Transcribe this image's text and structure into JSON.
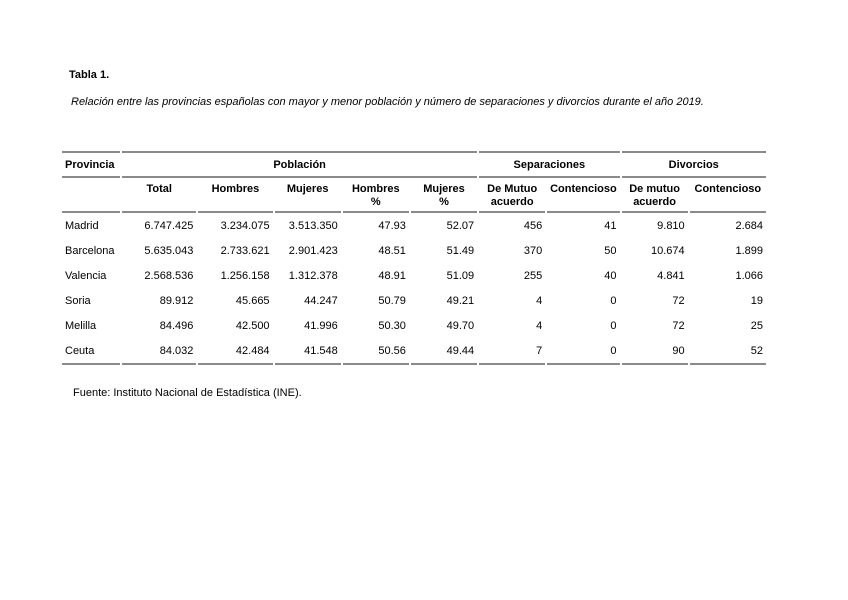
{
  "doc": {
    "title": "Tabla 1.",
    "subtitle": "Relación entre las provincias españolas con mayor y menor población y número de separaciones y divorcios durante el año 2019.",
    "source": "Fuente: Instituto Nacional de Estadística (INE)."
  },
  "colors": {
    "rule": "#8a8a8a",
    "text": "#000000",
    "background": "#ffffff"
  },
  "chart_data": {
    "type": "table",
    "title": "Tabla 1.",
    "caption": "Relación entre las provincias españolas con mayor y menor población y número de separaciones y divorcios durante el año 2019.",
    "source": "Fuente: Instituto Nacional de Estadística (INE).",
    "group_headers": [
      {
        "label": "Provincia",
        "colspan": 1
      },
      {
        "label": "Población",
        "colspan": 5
      },
      {
        "label": "Separaciones",
        "colspan": 2
      },
      {
        "label": "Divorcios",
        "colspan": 2
      }
    ],
    "column_headers": [
      "",
      "Total",
      "Hombres",
      "Mujeres",
      "Hombres\n%",
      "Mujeres\n%",
      "De Mutuo\nacuerdo",
      "Contencioso",
      "De mutuo\nacuerdo",
      "Contencioso"
    ],
    "rows": [
      [
        "Madrid",
        "6.747.425",
        "3.234.075",
        "3.513.350",
        "47.93",
        "52.07",
        "456",
        "41",
        "9.810",
        "2.684"
      ],
      [
        "Barcelona",
        "5.635.043",
        "2.733.621",
        "2.901.423",
        "48.51",
        "51.49",
        "370",
        "50",
        "10.674",
        "1.899"
      ],
      [
        "Valencia",
        "2.568.536",
        "1.256.158",
        "1.312.378",
        "48.91",
        "51.09",
        "255",
        "40",
        "4.841",
        "1.066"
      ],
      [
        "Soria",
        "89.912",
        "45.665",
        "44.247",
        "50.79",
        "49.21",
        "4",
        "0",
        "72",
        "19"
      ],
      [
        "Melilla",
        "84.496",
        "42.500",
        "41.996",
        "50.30",
        "49.70",
        "4",
        "0",
        "72",
        "25"
      ],
      [
        "Ceuta",
        "84.032",
        "42.484",
        "41.548",
        "50.56",
        "49.44",
        "7",
        "0",
        "90",
        "52"
      ]
    ]
  }
}
